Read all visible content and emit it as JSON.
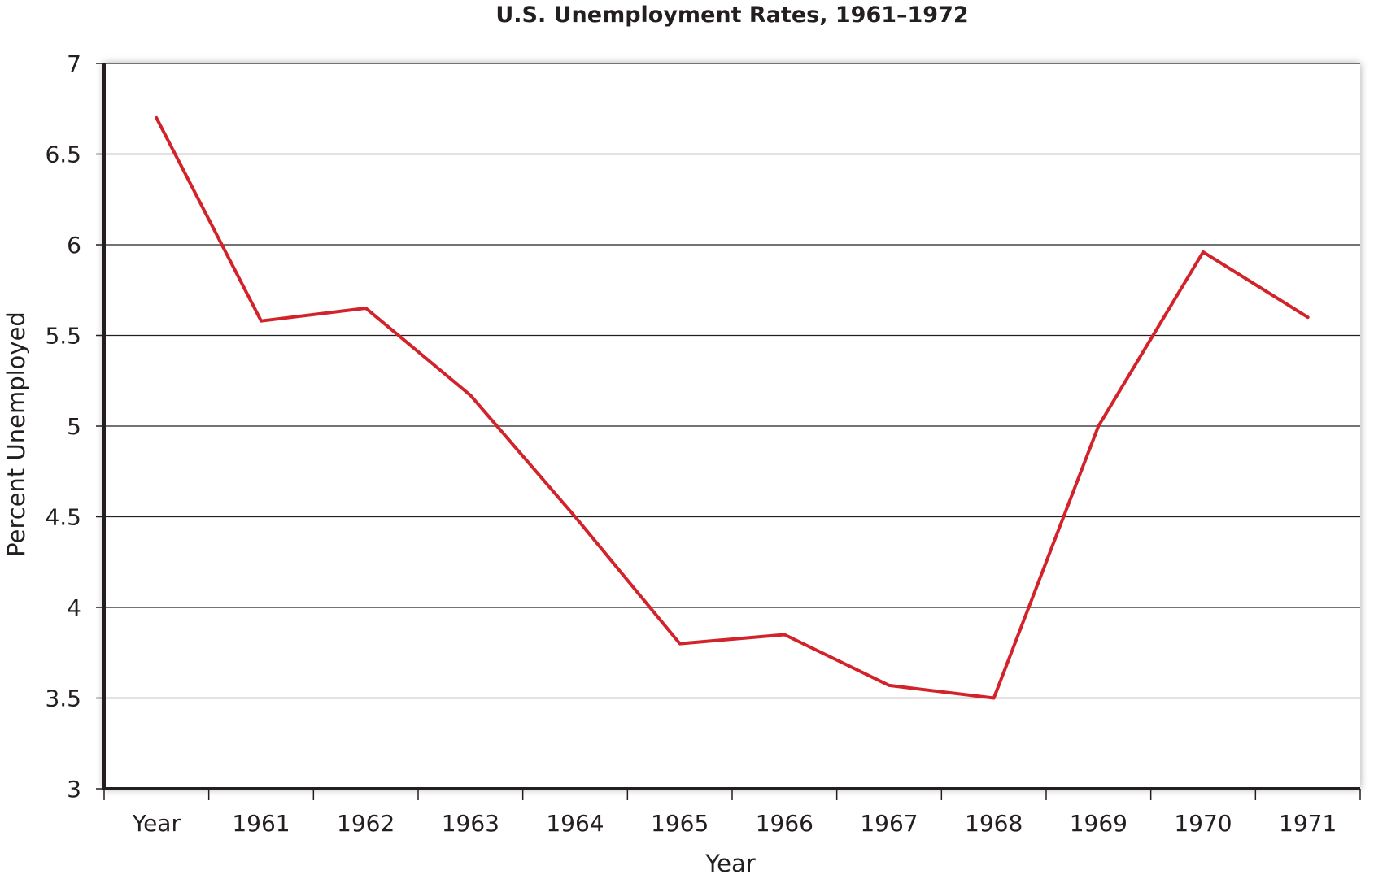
{
  "chart_data": {
    "type": "line",
    "title": "U.S. Unemployment Rates, 1961–1972",
    "xlabel": "Year",
    "ylabel": "Percent Unemployed",
    "categories": [
      "Year",
      "1961",
      "1962",
      "1963",
      "1964",
      "1965",
      "1966",
      "1967",
      "1968",
      "1969",
      "1970",
      "1971"
    ],
    "series": [
      {
        "values": [
          6.7,
          5.58,
          5.65,
          5.17,
          4.5,
          3.8,
          3.85,
          3.57,
          3.5,
          5.0,
          5.96,
          5.6
        ],
        "color": "#d2232a"
      }
    ],
    "ylim": [
      3,
      7
    ],
    "yticks": [
      3,
      3.5,
      4,
      4.5,
      5,
      5.5,
      6,
      6.5,
      7
    ],
    "ytick_labels": [
      "3",
      "3.5",
      "4",
      "4.5",
      "5",
      "5.5",
      "6",
      "6.5",
      "7"
    ],
    "grid": true,
    "legend": "none"
  }
}
